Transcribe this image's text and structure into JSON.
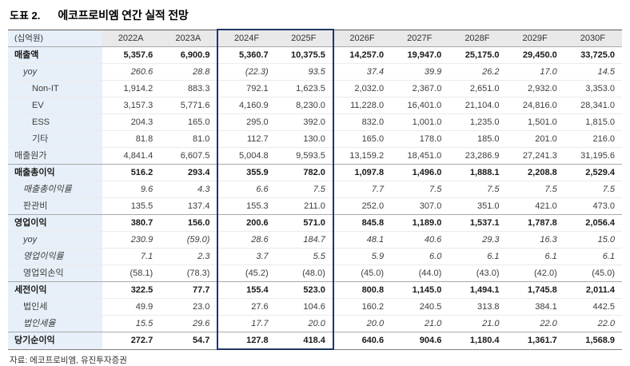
{
  "title": {
    "label": "도표 2.",
    "text": "에코프로비엠 연간 실적 전망"
  },
  "source": "자료: 에코프로비엠, 유진투자증권",
  "colors": {
    "highlight_border": "#203864",
    "header_background": "#e9e9e9",
    "label_column_background": "#e7f0f8"
  },
  "table": {
    "unit": "(십억원)",
    "columns": [
      "2022A",
      "2023A",
      "2024F",
      "2025F",
      "2026F",
      "2027F",
      "2028F",
      "2029F",
      "2030F"
    ],
    "highlight_columns": [
      "2024F",
      "2025F"
    ],
    "rows": [
      {
        "label": "매출액",
        "style": "bold",
        "indent": 0,
        "section": false,
        "values": [
          "5,357.6",
          "6,900.9",
          "5,360.7",
          "10,375.5",
          "14,257.0",
          "19,947.0",
          "25,175.0",
          "29,450.0",
          "33,725.0"
        ]
      },
      {
        "label": "yoy",
        "style": "italic",
        "indent": 1,
        "section": false,
        "values": [
          "260.6",
          "28.8",
          "(22.3)",
          "93.5",
          "37.4",
          "39.9",
          "26.2",
          "17.0",
          "14.5"
        ]
      },
      {
        "label": "Non-IT",
        "style": "normal",
        "indent": 2,
        "section": false,
        "values": [
          "1,914.2",
          "883.3",
          "792.1",
          "1,623.5",
          "2,032.0",
          "2,367.0",
          "2,651.0",
          "2,932.0",
          "3,353.0"
        ]
      },
      {
        "label": "EV",
        "style": "normal",
        "indent": 2,
        "section": false,
        "values": [
          "3,157.3",
          "5,771.6",
          "4,160.9",
          "8,230.0",
          "11,228.0",
          "16,401.0",
          "21,104.0",
          "24,816.0",
          "28,341.0"
        ]
      },
      {
        "label": "ESS",
        "style": "normal",
        "indent": 2,
        "section": false,
        "values": [
          "204.3",
          "165.0",
          "295.0",
          "392.0",
          "832.0",
          "1,001.0",
          "1,235.0",
          "1,501.0",
          "1,815.0"
        ]
      },
      {
        "label": "기타",
        "style": "normal",
        "indent": 2,
        "section": false,
        "values": [
          "81.8",
          "81.0",
          "112.7",
          "130.0",
          "165.0",
          "178.0",
          "185.0",
          "201.0",
          "216.0"
        ]
      },
      {
        "label": "매출원가",
        "style": "normal",
        "indent": 0,
        "section": false,
        "values": [
          "4,841.4",
          "6,607.5",
          "5,004.8",
          "9,593.5",
          "13,159.2",
          "18,451.0",
          "23,286.9",
          "27,241.3",
          "31,195.6"
        ]
      },
      {
        "label": "매출총이익",
        "style": "bold",
        "indent": 0,
        "section": true,
        "values": [
          "516.2",
          "293.4",
          "355.9",
          "782.0",
          "1,097.8",
          "1,496.0",
          "1,888.1",
          "2,208.8",
          "2,529.4"
        ]
      },
      {
        "label": "매출총이익률",
        "style": "italic",
        "indent": 1,
        "section": false,
        "values": [
          "9.6",
          "4.3",
          "6.6",
          "7.5",
          "7.7",
          "7.5",
          "7.5",
          "7.5",
          "7.5"
        ]
      },
      {
        "label": "판관비",
        "style": "normal",
        "indent": 1,
        "section": false,
        "values": [
          "135.5",
          "137.4",
          "155.3",
          "211.0",
          "252.0",
          "307.0",
          "351.0",
          "421.0",
          "473.0"
        ]
      },
      {
        "label": "영업이익",
        "style": "bold",
        "indent": 0,
        "section": true,
        "values": [
          "380.7",
          "156.0",
          "200.6",
          "571.0",
          "845.8",
          "1,189.0",
          "1,537.1",
          "1,787.8",
          "2,056.4"
        ]
      },
      {
        "label": "yoy",
        "style": "italic",
        "indent": 1,
        "section": false,
        "values": [
          "230.9",
          "(59.0)",
          "28.6",
          "184.7",
          "48.1",
          "40.6",
          "29.3",
          "16.3",
          "15.0"
        ]
      },
      {
        "label": "영업이익률",
        "style": "italic",
        "indent": 1,
        "section": false,
        "values": [
          "7.1",
          "2.3",
          "3.7",
          "5.5",
          "5.9",
          "6.0",
          "6.1",
          "6.1",
          "6.1"
        ]
      },
      {
        "label": "영업외손익",
        "style": "normal",
        "indent": 1,
        "section": false,
        "values": [
          "(58.1)",
          "(78.3)",
          "(45.2)",
          "(48.0)",
          "(45.0)",
          "(44.0)",
          "(43.0)",
          "(42.0)",
          "(45.0)"
        ]
      },
      {
        "label": "세전이익",
        "style": "bold",
        "indent": 0,
        "section": true,
        "values": [
          "322.5",
          "77.7",
          "155.4",
          "523.0",
          "800.8",
          "1,145.0",
          "1,494.1",
          "1,745.8",
          "2,011.4"
        ]
      },
      {
        "label": "법인세",
        "style": "normal",
        "indent": 1,
        "section": false,
        "values": [
          "49.9",
          "23.0",
          "27.6",
          "104.6",
          "160.2",
          "240.5",
          "313.8",
          "384.1",
          "442.5"
        ]
      },
      {
        "label": "법인세율",
        "style": "italic",
        "indent": 1,
        "section": false,
        "values": [
          "15.5",
          "29.6",
          "17.7",
          "20.0",
          "20.0",
          "21.0",
          "21.0",
          "22.0",
          "22.0"
        ]
      },
      {
        "label": "당기순이익",
        "style": "bold",
        "indent": 0,
        "section": true,
        "values": [
          "272.7",
          "54.7",
          "127.8",
          "418.4",
          "640.6",
          "904.6",
          "1,180.4",
          "1,361.7",
          "1,568.9"
        ]
      }
    ]
  }
}
